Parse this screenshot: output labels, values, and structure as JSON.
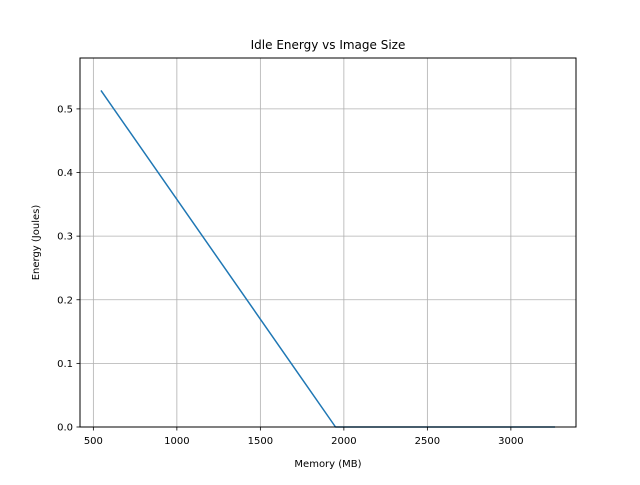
{
  "chart_data": {
    "type": "line",
    "title": "Idle Energy vs Image Size",
    "xlabel": "Memory (MB)",
    "ylabel": "Energy (Joules)",
    "xlim": [
      420,
      3390
    ],
    "ylim": [
      0.0,
      0.58
    ],
    "xticks": [
      500,
      1000,
      1500,
      2000,
      2500,
      3000
    ],
    "yticks": [
      0.0,
      0.1,
      0.2,
      0.3,
      0.4,
      0.5
    ],
    "xtick_labels": [
      "500",
      "1000",
      "1500",
      "2000",
      "2500",
      "3000"
    ],
    "ytick_labels": [
      "0.0",
      "0.1",
      "0.2",
      "0.3",
      "0.4",
      "0.5"
    ],
    "grid": true,
    "series": [
      {
        "color": "#1f77b4",
        "x": [
          548,
          1950,
          3260
        ],
        "y": [
          0.528,
          0.0,
          0.0
        ]
      }
    ]
  }
}
